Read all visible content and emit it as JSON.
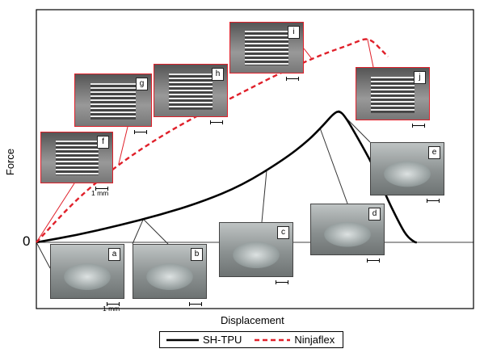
{
  "chart_data": {
    "type": "line",
    "title": "",
    "xlabel": "Displacement",
    "ylabel": "Force",
    "origin_label": "0",
    "xlim": [
      0,
      100
    ],
    "ylim": [
      -12,
      100
    ],
    "legend": {
      "placement": "bottom-center"
    },
    "series": [
      {
        "name": "SH-TPU",
        "color": "#000000",
        "style": "solid",
        "x": [
          0,
          10,
          20,
          30,
          40,
          50,
          60,
          66,
          70,
          72,
          73.5,
          75,
          78,
          82,
          85,
          88,
          90,
          92,
          92.5
        ],
        "y": [
          0,
          3.5,
          8,
          13,
          19,
          27,
          39,
          48,
          56,
          60.5,
          62.5,
          60,
          50,
          36,
          22,
          10,
          3,
          0,
          0
        ]
      },
      {
        "name": "Ninjaflex",
        "color": "#e0202a",
        "style": "dashed",
        "x": [
          0,
          10,
          20,
          30,
          40,
          50,
          60,
          70,
          76,
          79,
          80.5,
          82,
          83.5,
          84.5,
          85.5
        ],
        "y": [
          0,
          21,
          37,
          50,
          61,
          71,
          81,
          89.5,
          93.5,
          96,
          96.5,
          95,
          92,
          90,
          88
        ]
      }
    ],
    "annotations": [
      {
        "label": "a",
        "series": "SH-TPU",
        "x": 0
      },
      {
        "label": "b",
        "series": "SH-TPU",
        "x": 26
      },
      {
        "label": "c",
        "series": "SH-TPU",
        "x": 56
      },
      {
        "label": "d",
        "series": "SH-TPU",
        "x": 69
      },
      {
        "label": "e",
        "series": "SH-TPU",
        "x": 73.5
      },
      {
        "label": "f",
        "series": "Ninjaflex",
        "x": 0
      },
      {
        "label": "g",
        "series": "Ninjaflex",
        "x": 20
      },
      {
        "label": "h",
        "series": "Ninjaflex",
        "x": 45
      },
      {
        "label": "i",
        "series": "Ninjaflex",
        "x": 67
      },
      {
        "label": "j",
        "series": "Ninjaflex",
        "x": 80.5
      }
    ]
  },
  "photos": [
    {
      "label": "a",
      "name": "photo-a",
      "kind": "sh-tpu",
      "scale_text": "1 mm"
    },
    {
      "label": "b",
      "name": "photo-b",
      "kind": "sh-tpu",
      "scale_text": ""
    },
    {
      "label": "c",
      "name": "photo-c",
      "kind": "sh-tpu",
      "scale_text": ""
    },
    {
      "label": "d",
      "name": "photo-d",
      "kind": "sh-tpu",
      "scale_text": ""
    },
    {
      "label": "e",
      "name": "photo-e",
      "kind": "sh-tpu",
      "scale_text": ""
    },
    {
      "label": "f",
      "name": "photo-f",
      "kind": "ninjaflex",
      "scale_text": "1 mm"
    },
    {
      "label": "g",
      "name": "photo-g",
      "kind": "ninjaflex",
      "scale_text": ""
    },
    {
      "label": "h",
      "name": "photo-h",
      "kind": "ninjaflex",
      "scale_text": ""
    },
    {
      "label": "i",
      "name": "photo-i",
      "kind": "ninjaflex",
      "scale_text": ""
    },
    {
      "label": "j",
      "name": "photo-j",
      "kind": "ninjaflex",
      "scale_text": ""
    }
  ]
}
